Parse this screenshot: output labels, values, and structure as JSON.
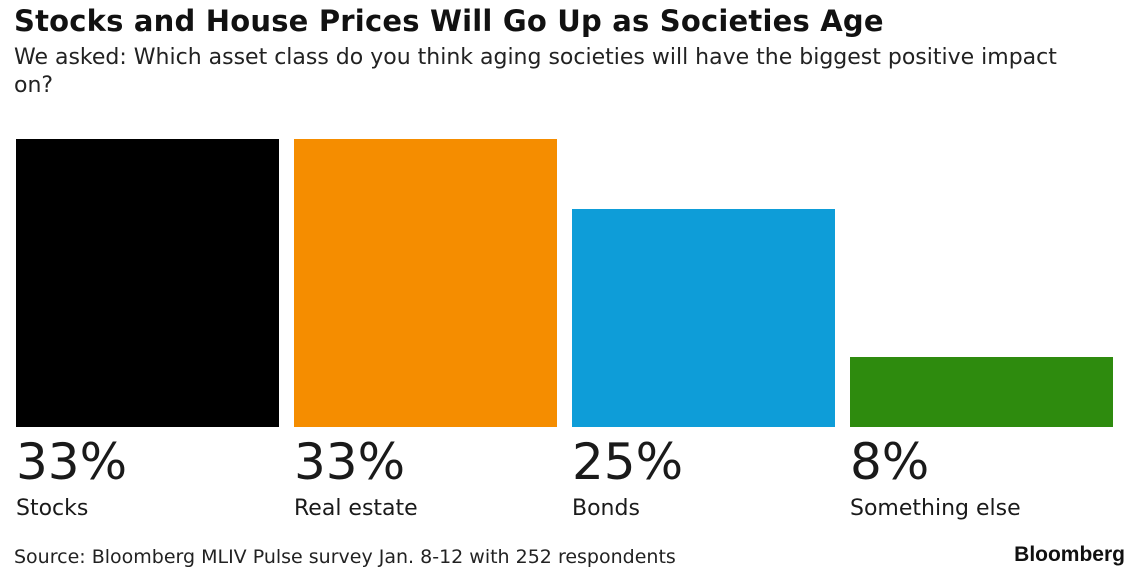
{
  "title": "Stocks and House Prices Will Go Up as Societies Age",
  "subtitle": "We asked: Which asset class do you think aging societies will have the biggest positive impact on?",
  "source": "Source: Bloomberg MLIV Pulse survey Jan. 8-12 with 252 respondents",
  "logo_text": "Bloomberg",
  "chart_data": {
    "type": "bar",
    "title": "Stocks and House Prices Will Go Up as Societies Age",
    "categories": [
      "Stocks",
      "Real estate",
      "Bonds",
      "Something else"
    ],
    "values": [
      33,
      33,
      25,
      8
    ],
    "value_labels": [
      "33%",
      "33%",
      "25%",
      "8%"
    ],
    "colors": [
      "#000000",
      "#f58d00",
      "#0e9dd8",
      "#2e8b0e"
    ],
    "unit": "%",
    "ylim": [
      0,
      33
    ],
    "grid": false,
    "legend": "none"
  }
}
